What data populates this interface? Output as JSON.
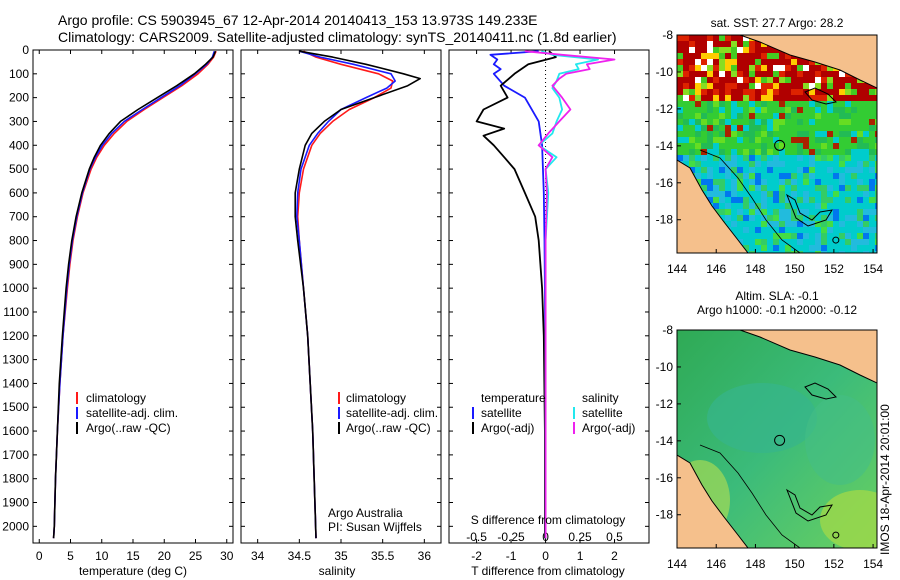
{
  "header": {
    "line1": "Argo profile: CS 5903945_67 12-Apr-2014 20140413_153 13.973S 149.233E",
    "line2": "Climatology: CARS2009. Satellite-adjusted climatology: synTS_20140411.nc (1.8d earlier)"
  },
  "colors": {
    "climatology": "#ff1a1a",
    "satellite": "#1a1aff",
    "argo": "#000000",
    "salinity_satellite": "#22e8ee",
    "salinity_argo": "#ee22ee",
    "land": "#f5c08c",
    "coast": "#000000"
  },
  "chart_data": [
    {
      "id": "temperature",
      "type": "line",
      "xlabel": "temperature (deg C)",
      "ylabel": "",
      "xlim": [
        -1,
        31
      ],
      "ylim": [
        2070,
        0
      ],
      "xticks": [
        0,
        5,
        10,
        15,
        20,
        25,
        30
      ],
      "yticks": [
        0,
        100,
        200,
        300,
        400,
        500,
        600,
        700,
        800,
        900,
        1000,
        1100,
        1200,
        1300,
        1400,
        1500,
        1600,
        1700,
        1800,
        1900,
        2000
      ],
      "legend": [
        "climatology",
        "satellite-adj. clim.",
        "Argo(..raw -QC)"
      ],
      "series": [
        {
          "name": "climatology",
          "color_key": "climatology",
          "depth": [
            5,
            30,
            60,
            100,
            150,
            200,
            250,
            300,
            350,
            400,
            450,
            500,
            600,
            700,
            800,
            900,
            1000,
            1200,
            1400,
            1600,
            1800,
            2000,
            2050
          ],
          "values": [
            28.3,
            27.9,
            27.0,
            25.4,
            22.8,
            19.8,
            16.8,
            14.0,
            12.0,
            10.4,
            9.2,
            8.3,
            7.0,
            6.1,
            5.4,
            4.9,
            4.5,
            3.8,
            3.3,
            2.9,
            2.6,
            2.4,
            2.3
          ]
        },
        {
          "name": "satellite-adj. clim.",
          "color_key": "satellite",
          "depth": [
            5,
            30,
            60,
            100,
            150,
            200,
            250,
            300,
            350,
            400,
            450,
            500,
            600,
            700,
            800,
            900,
            1000,
            1200,
            1400,
            1600,
            1800,
            2000,
            2050
          ],
          "values": [
            28.0,
            27.7,
            26.8,
            25.0,
            22.5,
            19.5,
            16.5,
            13.6,
            11.6,
            10.1,
            9.0,
            8.1,
            6.9,
            6.0,
            5.3,
            4.8,
            4.4,
            3.8,
            3.3,
            2.9,
            2.6,
            2.4,
            2.3
          ]
        },
        {
          "name": "Argo(..raw -QC)",
          "color_key": "argo",
          "depth": [
            5,
            30,
            60,
            100,
            150,
            200,
            250,
            300,
            350,
            400,
            450,
            500,
            600,
            700,
            800,
            900,
            1000,
            1200,
            1400,
            1600,
            1800,
            2000,
            2050
          ],
          "values": [
            28.2,
            27.8,
            26.6,
            24.8,
            22.0,
            18.9,
            15.8,
            13.0,
            11.2,
            9.8,
            8.8,
            8.0,
            6.8,
            5.9,
            5.2,
            4.7,
            4.3,
            3.7,
            3.2,
            2.9,
            2.6,
            2.4,
            2.3
          ]
        }
      ]
    },
    {
      "id": "salinity",
      "type": "line",
      "xlabel": "salinity",
      "xlim": [
        33.8,
        36.2
      ],
      "ylim": [
        2070,
        0
      ],
      "xticks": [
        34,
        34.5,
        35,
        35.5,
        36
      ],
      "legend": [
        "climatology",
        "satellite-adj. clim.",
        "Argo(..raw -QC)"
      ],
      "annotation1": "Argo Australia",
      "annotation2": "PI: Susan Wijffels",
      "series": [
        {
          "name": "climatology",
          "color_key": "climatology",
          "depth": [
            5,
            30,
            60,
            100,
            130,
            160,
            200,
            250,
            300,
            350,
            400,
            500,
            600,
            700,
            800,
            1000,
            1200,
            1600,
            2050
          ],
          "values": [
            34.55,
            34.7,
            35.0,
            35.45,
            35.62,
            35.6,
            35.4,
            35.1,
            34.9,
            34.75,
            34.65,
            34.55,
            34.5,
            34.48,
            34.5,
            34.55,
            34.6,
            34.66,
            34.7
          ]
        },
        {
          "name": "satellite-adj. clim.",
          "color_key": "satellite",
          "depth": [
            5,
            30,
            60,
            100,
            130,
            160,
            200,
            250,
            300,
            350,
            400,
            500,
            600,
            700,
            800,
            1000,
            1200,
            1600,
            2050
          ],
          "values": [
            34.5,
            34.75,
            35.15,
            35.6,
            35.65,
            35.55,
            35.3,
            35.0,
            34.85,
            34.72,
            34.62,
            34.52,
            34.48,
            34.47,
            34.5,
            34.55,
            34.6,
            34.66,
            34.7
          ]
        },
        {
          "name": "Argo(..raw -QC)",
          "color_key": "argo",
          "depth": [
            5,
            30,
            60,
            100,
            120,
            150,
            200,
            250,
            300,
            350,
            400,
            500,
            600,
            700,
            800,
            1000,
            1200,
            1600,
            2050
          ],
          "values": [
            34.5,
            34.9,
            35.3,
            35.75,
            35.95,
            35.8,
            35.4,
            35.0,
            34.8,
            34.65,
            34.57,
            34.5,
            34.45,
            34.45,
            34.48,
            34.55,
            34.6,
            34.66,
            34.7
          ]
        }
      ]
    },
    {
      "id": "difference",
      "type": "line",
      "xlabel": "T difference from climatology",
      "xlabel_top": "S difference from climatology",
      "xlim_T": [
        -2.8,
        3.0
      ],
      "xticks_T": [
        -2,
        -1,
        0,
        1,
        2
      ],
      "xticks_S": [
        -0.5,
        -0.25,
        0,
        0.25,
        0.5
      ],
      "xtick_labels_S": [
        "-0.5",
        "-0.25",
        "0",
        "0.25",
        "0.5"
      ],
      "ylim": [
        2070,
        0
      ],
      "legend_temperature_title": "temperature",
      "legend_salinity_title": "salinity",
      "legend": [
        "satellite",
        "Argo(-adj)",
        "satellite",
        "Argo(-adj)"
      ],
      "series": [
        {
          "name": "T satellite",
          "color_key": "satellite",
          "depth": [
            5,
            20,
            40,
            60,
            80,
            100,
            150,
            200,
            300,
            400,
            600,
            800,
            1000,
            1400,
            2050
          ],
          "values": [
            -0.2,
            -1.6,
            -1.4,
            -1.5,
            -1.3,
            -1.5,
            -1.2,
            -0.6,
            -0.2,
            -0.1,
            -0.05,
            -0.03,
            -0.02,
            -0.01,
            0
          ]
        },
        {
          "name": "T Argo(-adj)",
          "color_key": "argo",
          "depth": [
            5,
            30,
            60,
            100,
            150,
            200,
            250,
            300,
            330,
            360,
            400,
            450,
            500,
            600,
            700,
            800,
            900,
            1000,
            1200,
            1600,
            2050
          ],
          "values": [
            0.1,
            0.3,
            -0.5,
            -0.9,
            -1.3,
            -1.1,
            -1.8,
            -2.0,
            -1.2,
            -1.8,
            -1.5,
            -1.2,
            -0.9,
            -0.6,
            -0.3,
            -0.2,
            -0.15,
            -0.1,
            -0.05,
            -0.02,
            -0.02
          ]
        },
        {
          "name": "S satellite",
          "color_key": "salinity_satellite",
          "depth": [
            5,
            20,
            40,
            60,
            80,
            100,
            130,
            160,
            200,
            250,
            300,
            350,
            400,
            450,
            500,
            600,
            800,
            1000,
            1600,
            2050
          ],
          "values": [
            -0.03,
            0.05,
            0.38,
            0.22,
            0.24,
            0.1,
            0.08,
            0.05,
            0.1,
            0.12,
            0.08,
            0.05,
            -0.05,
            0.08,
            0.0,
            0.02,
            0.0,
            0.0,
            0.0,
            0.0
          ]
        },
        {
          "name": "S Argo(-adj)",
          "color_key": "salinity_argo",
          "depth": [
            5,
            20,
            40,
            60,
            80,
            100,
            120,
            150,
            200,
            250,
            300,
            350,
            400,
            450,
            500,
            600,
            800,
            1000,
            1600,
            2050
          ],
          "values": [
            -0.15,
            0.12,
            0.5,
            0.3,
            0.32,
            0.15,
            0.1,
            0.05,
            0.12,
            0.18,
            0.1,
            0.02,
            -0.05,
            0.05,
            0.0,
            0.01,
            0.0,
            0.0,
            0.0,
            0.0
          ]
        }
      ]
    },
    {
      "id": "sst_map",
      "type": "heatmap",
      "title": "sat. SST: 27.7 Argo: 28.2",
      "xlim": [
        144,
        154.2
      ],
      "ylim": [
        -19.8,
        -8
      ],
      "xticks": [
        144,
        146,
        148,
        150,
        152,
        154
      ],
      "yticks": [
        -8,
        -10,
        -12,
        -14,
        -16,
        -18
      ],
      "float_position": [
        149.233,
        -13.973
      ],
      "second_marker": [
        152.1,
        -19.1
      ]
    },
    {
      "id": "sla_map",
      "type": "heatmap",
      "title1": "Altim. SLA: -0.1",
      "title2": "Argo h1000: -0.1 h2000: -0.12",
      "xlim": [
        144,
        154.2
      ],
      "ylim": [
        -19.8,
        -8
      ],
      "xticks": [
        144,
        146,
        148,
        150,
        152,
        154
      ],
      "yticks": [
        -8,
        -10,
        -12,
        -14,
        -16,
        -18
      ],
      "float_position": [
        149.233,
        -13.973
      ],
      "second_marker": [
        152.1,
        -19.1
      ]
    }
  ],
  "footer": {
    "credit": "IMOS 18-Apr-2014 20:01:00"
  }
}
